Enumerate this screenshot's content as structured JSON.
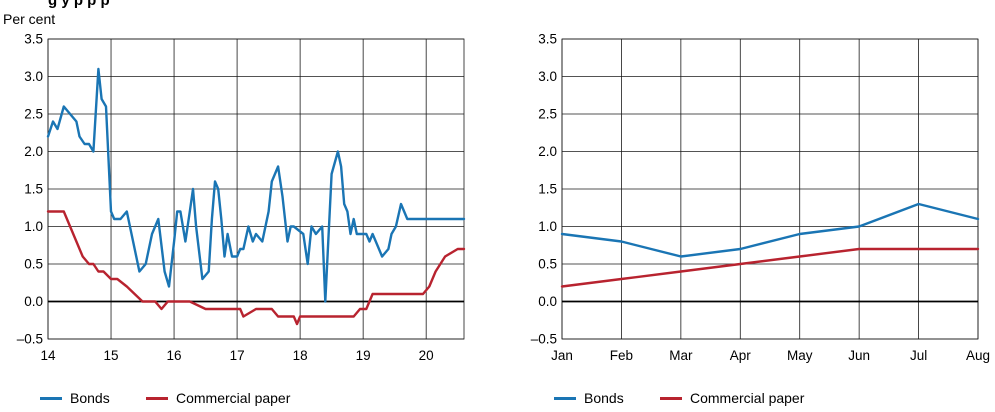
{
  "figure": {
    "title": "g                 y                              p p          p"
  },
  "chart_data": [
    {
      "type": "line",
      "ylabel": "Per cent",
      "ylim": [
        -0.5,
        3.5
      ],
      "yticks": [
        "3.5",
        "3.0",
        "2.5",
        "2.0",
        "1.5",
        "1.0",
        "0.5",
        "0.0",
        "–0.5"
      ],
      "xlim": [
        14,
        20.6
      ],
      "xticks": [
        "14",
        "15",
        "16",
        "17",
        "18",
        "19",
        "20"
      ],
      "grid": true,
      "legend": "bottom-left",
      "series": [
        {
          "name": "Bonds",
          "color": "#1a75b4",
          "x": [
            14.0,
            14.08,
            14.15,
            14.25,
            14.35,
            14.45,
            14.5,
            14.58,
            14.65,
            14.72,
            14.8,
            14.85,
            14.92,
            15.0,
            15.05,
            15.15,
            15.25,
            15.35,
            15.45,
            15.55,
            15.65,
            15.75,
            15.85,
            15.92,
            16.0,
            16.05,
            16.1,
            16.18,
            16.25,
            16.3,
            16.35,
            16.45,
            16.55,
            16.6,
            16.65,
            16.7,
            16.75,
            16.8,
            16.85,
            16.92,
            17.0,
            17.05,
            17.1,
            17.18,
            17.25,
            17.3,
            17.4,
            17.5,
            17.55,
            17.65,
            17.72,
            17.8,
            17.85,
            17.9,
            18.05,
            18.12,
            18.18,
            18.25,
            18.35,
            18.4,
            18.5,
            18.6,
            18.65,
            18.7,
            18.75,
            18.8,
            18.85,
            18.9,
            19.0,
            19.05,
            19.1,
            19.15,
            19.2,
            19.3,
            19.4,
            19.45,
            19.52,
            19.6,
            19.7,
            19.75,
            19.85,
            19.92,
            20.0,
            20.05,
            20.12,
            20.2,
            20.3,
            20.35,
            20.45,
            20.5,
            20.6
          ],
          "y": [
            2.2,
            2.4,
            2.3,
            2.6,
            2.5,
            2.4,
            2.2,
            2.1,
            2.1,
            2.0,
            3.1,
            2.7,
            2.6,
            1.2,
            1.1,
            1.1,
            1.2,
            0.8,
            0.4,
            0.5,
            0.9,
            1.1,
            0.4,
            0.2,
            0.8,
            1.2,
            1.2,
            0.8,
            1.2,
            1.5,
            1.0,
            0.3,
            0.4,
            1.1,
            1.6,
            1.5,
            1.1,
            0.6,
            0.9,
            0.6,
            0.6,
            0.7,
            0.7,
            1.0,
            0.8,
            0.9,
            0.8,
            1.2,
            1.6,
            1.8,
            1.4,
            0.8,
            1.0,
            1.0,
            0.9,
            0.5,
            1.0,
            0.9,
            1.0,
            0.0,
            1.7,
            2.0,
            1.8,
            1.3,
            1.2,
            0.9,
            1.1,
            0.9,
            0.9,
            0.9,
            0.8,
            0.9,
            0.8,
            0.6,
            0.7,
            0.9,
            1.0,
            1.3,
            1.1,
            1.1,
            1.1,
            1.1,
            1.1,
            1.1,
            1.1,
            1.1,
            1.1,
            1.1,
            1.1,
            1.1,
            1.1
          ]
        },
        {
          "name": "Commercial paper",
          "color": "#b8232f",
          "x": [
            14.0,
            14.25,
            14.35,
            14.45,
            14.55,
            14.65,
            14.72,
            14.8,
            14.88,
            15.0,
            15.1,
            15.25,
            15.5,
            15.6,
            15.7,
            15.8,
            15.9,
            16.0,
            16.1,
            16.25,
            16.5,
            16.75,
            16.95,
            17.0,
            17.05,
            17.1,
            17.3,
            17.45,
            17.55,
            17.65,
            17.75,
            17.8,
            17.85,
            17.9,
            17.95,
            18.0,
            18.05,
            18.1,
            18.15,
            18.25,
            18.4,
            18.6,
            18.85,
            18.95,
            19.05,
            19.15,
            19.3,
            19.5,
            19.75,
            19.95,
            20.05,
            20.15,
            20.3,
            20.5,
            20.6
          ],
          "y": [
            1.2,
            1.2,
            1.0,
            0.8,
            0.6,
            0.5,
            0.5,
            0.4,
            0.4,
            0.3,
            0.3,
            0.2,
            0.0,
            0.0,
            0.0,
            -0.1,
            0.0,
            0.0,
            0.0,
            0.0,
            -0.1,
            -0.1,
            -0.1,
            -0.1,
            -0.1,
            -0.2,
            -0.1,
            -0.1,
            -0.1,
            -0.2,
            -0.2,
            -0.2,
            -0.2,
            -0.2,
            -0.3,
            -0.2,
            -0.2,
            -0.2,
            -0.2,
            -0.2,
            -0.2,
            -0.2,
            -0.2,
            -0.1,
            -0.1,
            0.1,
            0.1,
            0.1,
            0.1,
            0.1,
            0.2,
            0.4,
            0.6,
            0.7,
            0.7
          ]
        }
      ]
    },
    {
      "type": "line",
      "ylim": [
        -0.5,
        3.5
      ],
      "yticks": [
        "3.5",
        "3.0",
        "2.5",
        "2.0",
        "1.5",
        "1.0",
        "0.5",
        "0.0",
        "–0.5"
      ],
      "categories": [
        "Jan",
        "Feb",
        "Mar",
        "Apr",
        "May",
        "Jun",
        "Jul",
        "Aug"
      ],
      "grid": true,
      "legend": "bottom-left",
      "series": [
        {
          "name": "Bonds",
          "color": "#1a75b4",
          "values": [
            0.9,
            0.8,
            0.6,
            0.7,
            0.9,
            1.0,
            1.3,
            1.1
          ]
        },
        {
          "name": "Commercial paper",
          "color": "#b8232f",
          "values": [
            0.2,
            0.3,
            0.4,
            0.5,
            0.6,
            0.7,
            0.7,
            0.7
          ]
        }
      ]
    }
  ]
}
